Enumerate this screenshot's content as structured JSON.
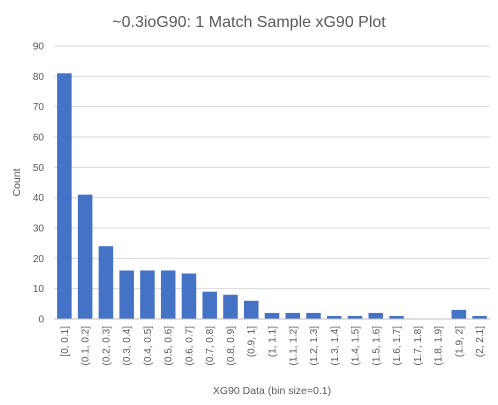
{
  "chart_data": {
    "type": "bar",
    "title": "~0.3ioG90: 1 Match Sample xG90 Plot",
    "xlabel": "XG90 Data (bin size=0.1)",
    "ylabel": "Count",
    "ylim": [
      0,
      90
    ],
    "yticks": [
      0,
      10,
      20,
      30,
      40,
      50,
      60,
      70,
      80,
      90
    ],
    "grid": true,
    "legend": "none",
    "bar_color": "#4472c4",
    "categories": [
      "[0, 0.1]",
      "(0.1, 0.2]",
      "(0.2, 0.3]",
      "(0.3, 0.4]",
      "(0.4, 0.5]",
      "(0.5, 0.6]",
      "(0.6, 0.7]",
      "(0.7, 0.8]",
      "(0.8, 0.9]",
      "(0.9, 1]",
      "(1, 1.1]",
      "(1.1, 1.2]",
      "(1.2, 1.3]",
      "(1.3, 1.4]",
      "(1.4, 1.5]",
      "(1.5, 1.6]",
      "(1.6, 1.7]",
      "(1.7, 1.8]",
      "(1.8, 1.9]",
      "(1.9, 2]",
      "(2, 2.1]"
    ],
    "values": [
      81,
      41,
      24,
      16,
      16,
      16,
      15,
      9,
      8,
      6,
      2,
      2,
      2,
      1,
      1,
      2,
      1,
      0,
      0,
      3,
      1
    ]
  }
}
